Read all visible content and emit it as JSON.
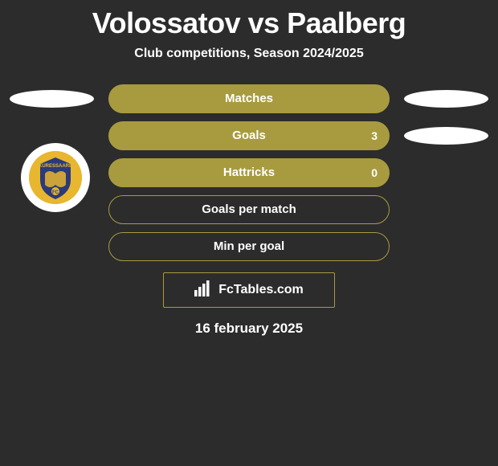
{
  "header": {
    "title": "Volossatov vs Paalberg",
    "subtitle": "Club competitions, Season 2024/2025"
  },
  "stats": [
    {
      "label": "Matches",
      "value_right": "",
      "filled": true,
      "show_left_oval": true,
      "show_right_oval": true
    },
    {
      "label": "Goals",
      "value_right": "3",
      "filled": true,
      "show_left_oval": false,
      "show_right_oval": true
    },
    {
      "label": "Hattricks",
      "value_right": "0",
      "filled": true,
      "show_left_oval": false,
      "show_right_oval": false
    },
    {
      "label": "Goals per match",
      "value_right": "",
      "filled": false,
      "show_left_oval": false,
      "show_right_oval": false
    },
    {
      "label": "Min per goal",
      "value_right": "",
      "filled": false,
      "show_left_oval": false,
      "show_right_oval": false
    }
  ],
  "branding": {
    "text": "FcTables.com"
  },
  "date": "16 february 2025",
  "colors": {
    "bar": "#a89b3f",
    "background": "#2c2c2c",
    "crest_bg": "#e8b62f",
    "crest_blue": "#2a3a7a"
  }
}
